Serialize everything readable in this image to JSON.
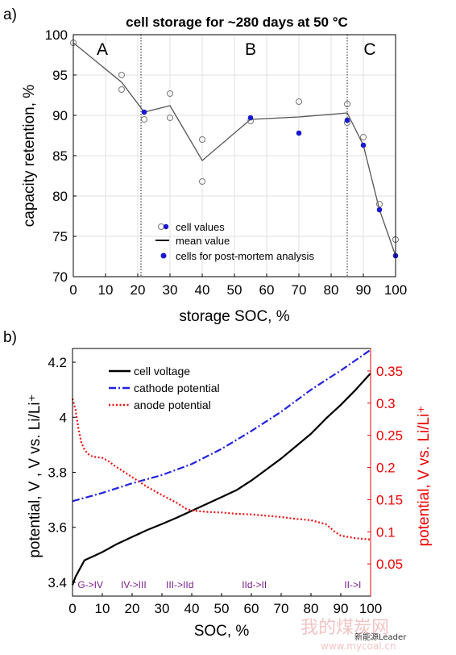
{
  "chart_data": [
    {
      "panel_label": "a)",
      "type": "scatter",
      "title": "cell storage for ~280 days at 50 °C",
      "xlabel": "storage SOC, %",
      "ylabel": "capacity retention, %",
      "xlim": [
        0,
        100
      ],
      "ylim": [
        70,
        100
      ],
      "xticks": [
        0,
        10,
        20,
        30,
        40,
        50,
        60,
        70,
        80,
        90,
        100
      ],
      "yticks": [
        70,
        75,
        80,
        85,
        90,
        95,
        100
      ],
      "grid": true,
      "legend_position": "bottom-right",
      "regions": [
        {
          "label": "A",
          "x": 9
        },
        {
          "label": "B",
          "x": 55
        },
        {
          "label": "C",
          "x": 92
        }
      ],
      "region_boundaries": [
        21,
        85
      ],
      "series": [
        {
          "name": "cell values",
          "style": "open-circle",
          "points": [
            [
              0,
              99
            ],
            [
              15,
              95
            ],
            [
              15,
              93.2
            ],
            [
              22,
              89.5
            ],
            [
              30,
              92.7
            ],
            [
              30,
              89.7
            ],
            [
              40,
              87
            ],
            [
              40,
              81.8
            ],
            [
              55,
              89.3
            ],
            [
              70,
              91.7
            ],
            [
              85,
              91.4
            ],
            [
              85,
              89.1
            ],
            [
              90,
              87.3
            ],
            [
              95,
              79
            ],
            [
              100,
              74.6
            ]
          ]
        },
        {
          "name": "mean value",
          "style": "line",
          "points": [
            [
              0,
              99
            ],
            [
              15,
              94.1
            ],
            [
              22,
              90.4
            ],
            [
              30,
              91.2
            ],
            [
              40,
              84.4
            ],
            [
              55,
              89.5
            ],
            [
              70,
              89.8
            ],
            [
              85,
              90.3
            ],
            [
              90,
              86.3
            ],
            [
              95,
              78.3
            ],
            [
              100,
              72.6
            ]
          ]
        },
        {
          "name": "cells for post-mortem analysis",
          "style": "filled-circle",
          "points": [
            [
              22,
              90.4
            ],
            [
              55,
              89.7
            ],
            [
              70,
              87.8
            ],
            [
              85,
              89.4
            ],
            [
              90,
              86.3
            ],
            [
              95,
              78.3
            ],
            [
              100,
              72.6
            ]
          ]
        }
      ]
    },
    {
      "panel_label": "b)",
      "type": "line",
      "xlabel": "SOC, %",
      "ylabel_left": "potential, V , V vs. Li/Li⁺",
      "ylabel_right": "potential, V vs. Li/Li⁺",
      "xlim": [
        0,
        100
      ],
      "ylim_left": [
        3.35,
        4.25
      ],
      "ylim_right": [
        0,
        0.385
      ],
      "xticks": [
        0,
        10,
        20,
        30,
        40,
        50,
        60,
        70,
        80,
        90,
        100
      ],
      "yticks_left": [
        3.4,
        3.6,
        3.8,
        4,
        4.2
      ],
      "yticks_right": [
        0.05,
        0.1,
        0.15,
        0.2,
        0.25,
        0.3,
        0.35
      ],
      "legend_position": "top-left",
      "stage_labels": [
        {
          "label": "G->IV",
          "x": 6
        },
        {
          "label": "IV->III",
          "x": 20.5
        },
        {
          "label": "III->IId",
          "x": 36
        },
        {
          "label": "IId->II",
          "x": 61
        },
        {
          "label": "II->I",
          "x": 94
        }
      ],
      "series": [
        {
          "name": "cell voltage",
          "axis": "left",
          "color": "#000000",
          "style": "solid",
          "x": [
            0,
            1,
            2,
            3,
            4,
            6,
            8,
            10,
            15,
            20,
            25,
            30,
            35,
            40,
            45,
            50,
            55,
            60,
            65,
            70,
            75,
            80,
            85,
            90,
            95,
            100
          ],
          "y": [
            3.39,
            3.42,
            3.44,
            3.46,
            3.48,
            3.49,
            3.5,
            3.51,
            3.54,
            3.565,
            3.59,
            3.612,
            3.635,
            3.66,
            3.685,
            3.71,
            3.735,
            3.77,
            3.81,
            3.85,
            3.895,
            3.94,
            3.995,
            4.045,
            4.1,
            4.16
          ]
        },
        {
          "name": "cathode potential",
          "axis": "left",
          "color": "#2222dd",
          "style": "dashdot",
          "x": [
            0,
            10,
            20,
            30,
            40,
            50,
            60,
            70,
            80,
            90,
            100
          ],
          "y": [
            3.695,
            3.725,
            3.76,
            3.79,
            3.83,
            3.885,
            3.95,
            4.02,
            4.1,
            4.17,
            4.245
          ]
        },
        {
          "name": "anode potential",
          "axis": "right",
          "color": "#ee1111",
          "style": "dotted",
          "x": [
            0,
            1,
            2,
            3,
            4,
            5,
            6,
            8,
            10,
            12,
            14,
            16,
            20,
            25,
            30,
            35,
            38,
            40,
            45,
            50,
            55,
            60,
            65,
            70,
            75,
            80,
            85,
            88,
            90,
            95,
            100
          ],
          "y": [
            0.307,
            0.29,
            0.26,
            0.238,
            0.228,
            0.222,
            0.218,
            0.216,
            0.215,
            0.21,
            0.203,
            0.197,
            0.185,
            0.17,
            0.157,
            0.145,
            0.136,
            0.133,
            0.131,
            0.13,
            0.128,
            0.127,
            0.125,
            0.123,
            0.12,
            0.118,
            0.112,
            0.1,
            0.094,
            0.09,
            0.088
          ]
        }
      ]
    }
  ],
  "watermark": {
    "text_1": "新能源Leader",
    "text_2": "我的煤炭网",
    "text_3": "www.mycoal.cn"
  }
}
